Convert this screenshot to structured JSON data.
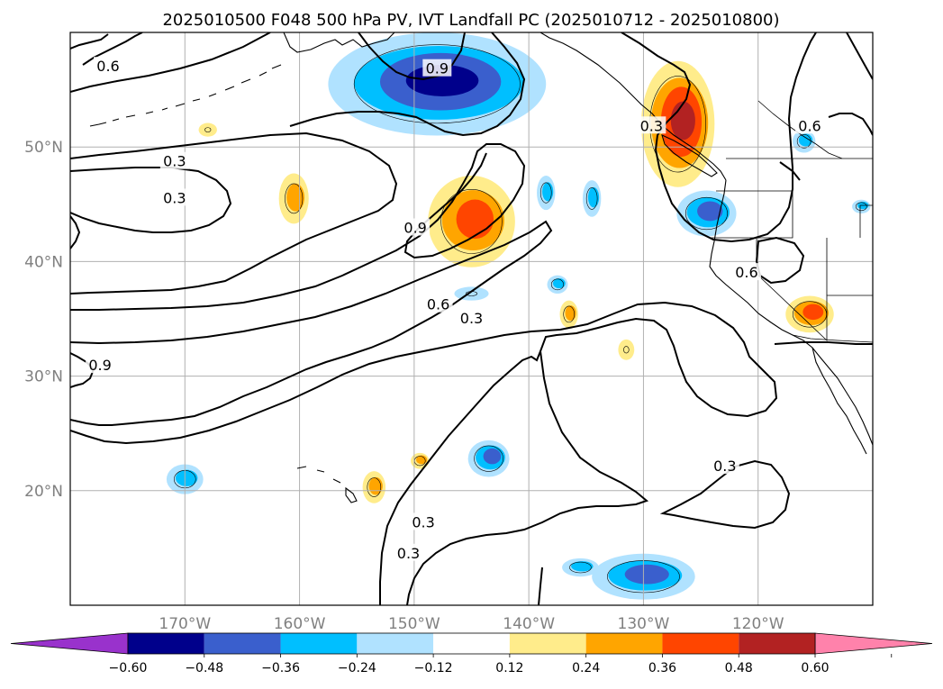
{
  "title": "2025010500 F048 500 hPa PV, IVT Landfall PC (2025010712 - 2025010800)",
  "map": {
    "lon_range": [
      -180,
      -110
    ],
    "lat_range": [
      10,
      60
    ],
    "lon_ticks": [
      {
        "lon": -170,
        "label": "170°W"
      },
      {
        "lon": -160,
        "label": "160°W"
      },
      {
        "lon": -150,
        "label": "150°W"
      },
      {
        "lon": -140,
        "label": "140°W"
      },
      {
        "lon": -130,
        "label": "130°W"
      },
      {
        "lon": -120,
        "label": "120°W"
      }
    ],
    "lat_ticks": [
      {
        "lat": 50,
        "label": "50°N"
      },
      {
        "lat": 40,
        "label": "40°N"
      },
      {
        "lat": 30,
        "label": "30°N"
      },
      {
        "lat": 20,
        "label": "20°N"
      }
    ],
    "grid": true
  },
  "chart_data": {
    "type": "heatmap",
    "title": "2025010500 F048 500 hPa PV, IVT Landfall PC (2025010712 - 2025010800)",
    "colorbar": {
      "levels": [
        -0.6,
        -0.48,
        -0.36,
        -0.24,
        -0.12,
        0.12,
        0.24,
        0.36,
        0.48,
        0.6
      ],
      "labels": [
        "−0.60",
        "−0.48",
        "−0.36",
        "−0.24",
        "−0.12",
        "0.12",
        "0.24",
        "0.36",
        "0.48",
        "0.60"
      ],
      "colors": [
        "#9932cc",
        "#00008b",
        "#3a5fcd",
        "#00bfff",
        "#b0e2ff",
        "#ffffff",
        "#ffec8b",
        "#ffa500",
        "#ff4500",
        "#b22222",
        "#ff82ab"
      ],
      "extend": "both"
    },
    "contour_levels": [
      0.3,
      0.6,
      0.9
    ],
    "contour_labels": [
      {
        "text": "0.3",
        "lon": -170.9,
        "lat": 48.7
      },
      {
        "text": "0.3",
        "lon": -170.9,
        "lat": 45.5
      },
      {
        "text": "0.6",
        "lon": -147.9,
        "lat": 36.2
      },
      {
        "text": "0.3",
        "lon": -145.0,
        "lat": 35.0
      },
      {
        "text": "0.9",
        "lon": -149.9,
        "lat": 42.9
      },
      {
        "text": "0.9",
        "lon": -148.0,
        "lat": 56.8
      },
      {
        "text": "0.6",
        "lon": -176.7,
        "lat": 57.0
      },
      {
        "text": "0.3",
        "lon": -129.3,
        "lat": 51.8
      },
      {
        "text": "0.6",
        "lon": -115.5,
        "lat": 51.8
      },
      {
        "text": "0.6",
        "lon": -121.0,
        "lat": 39.0
      },
      {
        "text": "0.9",
        "lon": -177.4,
        "lat": 30.9
      },
      {
        "text": "0.3",
        "lon": -149.2,
        "lat": 17.2
      },
      {
        "text": "0.3",
        "lon": -150.5,
        "lat": 14.5
      },
      {
        "text": "0.3",
        "lon": -122.9,
        "lat": 22.1
      }
    ],
    "anomalies": [
      {
        "lon": -148,
        "lat": 55.5,
        "rx": 9.5,
        "ry": 4.5,
        "level": -0.48
      },
      {
        "lon": -145,
        "lat": 43.5,
        "rx": 3.8,
        "ry": 4.0,
        "level": 0.36
      },
      {
        "lon": -127,
        "lat": 52.0,
        "rx": 3.2,
        "ry": 5.5,
        "level": 0.48
      },
      {
        "lon": -124.5,
        "lat": 44.2,
        "rx": 2.6,
        "ry": 2.0,
        "level": -0.36
      },
      {
        "lon": -115.5,
        "lat": 35.4,
        "rx": 2.1,
        "ry": 1.6,
        "level": 0.36
      },
      {
        "lon": -160.5,
        "lat": 45.5,
        "rx": 1.3,
        "ry": 2.2,
        "level": 0.24
      },
      {
        "lon": -130,
        "lat": 12.5,
        "rx": 4.5,
        "ry": 2.0,
        "level": -0.36
      },
      {
        "lon": -143.5,
        "lat": 22.8,
        "rx": 1.8,
        "ry": 1.6,
        "level": -0.36
      },
      {
        "lon": -170.0,
        "lat": 21.0,
        "rx": 1.6,
        "ry": 1.3,
        "level": -0.24
      },
      {
        "lon": -153.5,
        "lat": 20.3,
        "rx": 1.0,
        "ry": 1.4,
        "level": 0.24
      },
      {
        "lon": -134.5,
        "lat": 45.5,
        "rx": 0.8,
        "ry": 1.6,
        "level": -0.24
      },
      {
        "lon": -138.5,
        "lat": 46.0,
        "rx": 0.8,
        "ry": 1.5,
        "level": -0.24
      },
      {
        "lon": -136.5,
        "lat": 35.4,
        "rx": 0.8,
        "ry": 1.2,
        "level": 0.24
      },
      {
        "lon": -116.0,
        "lat": 50.5,
        "rx": 1.0,
        "ry": 1.0,
        "level": -0.24
      },
      {
        "lon": -135.5,
        "lat": 13.3,
        "rx": 1.6,
        "ry": 0.8,
        "level": -0.24
      },
      {
        "lon": -145.0,
        "lat": 37.2,
        "rx": 1.5,
        "ry": 0.6,
        "level": -0.12
      },
      {
        "lon": -131.5,
        "lat": 32.3,
        "rx": 0.7,
        "ry": 0.9,
        "level": 0.12
      },
      {
        "lon": -137.5,
        "lat": 38.0,
        "rx": 0.9,
        "ry": 0.8,
        "level": -0.24
      },
      {
        "lon": -168.0,
        "lat": 51.5,
        "rx": 0.8,
        "ry": 0.6,
        "level": 0.12
      },
      {
        "lon": -149.5,
        "lat": 22.6,
        "rx": 0.8,
        "ry": 0.7,
        "level": 0.24
      },
      {
        "lon": -111.0,
        "lat": 44.8,
        "rx": 0.8,
        "ry": 0.6,
        "level": -0.24
      }
    ]
  }
}
